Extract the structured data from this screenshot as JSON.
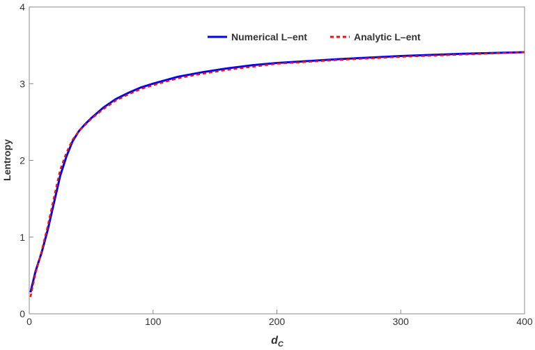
{
  "chart_data": {
    "type": "line",
    "x_label": {
      "main": "d",
      "sub": "C"
    },
    "y_label": "Lentropy",
    "xlim": [
      0,
      400
    ],
    "ylim": [
      0,
      4
    ],
    "xticks": [
      0,
      100,
      200,
      300,
      400
    ],
    "yticks": [
      0,
      1,
      2,
      3,
      4
    ],
    "legend": "top",
    "x": [
      1,
      5,
      10,
      15,
      20,
      25,
      30,
      35,
      40,
      45,
      50,
      60,
      70,
      80,
      90,
      100,
      120,
      140,
      160,
      180,
      200,
      250,
      300,
      350,
      400
    ],
    "series": [
      {
        "name": "Numerical L–ent",
        "color": "#0000ee",
        "dashed": false,
        "values": [
          0.28,
          0.55,
          0.8,
          1.1,
          1.45,
          1.8,
          2.05,
          2.25,
          2.38,
          2.47,
          2.55,
          2.69,
          2.8,
          2.88,
          2.95,
          3.0,
          3.09,
          3.15,
          3.2,
          3.24,
          3.27,
          3.32,
          3.36,
          3.39,
          3.41
        ]
      },
      {
        "name": "Analytic L–ent",
        "color": "#ee1111",
        "dashed": true,
        "values": [
          0.22,
          0.52,
          0.82,
          1.15,
          1.52,
          1.88,
          2.1,
          2.27,
          2.38,
          2.46,
          2.54,
          2.67,
          2.78,
          2.86,
          2.93,
          2.98,
          3.07,
          3.13,
          3.18,
          3.22,
          3.26,
          3.31,
          3.35,
          3.38,
          3.41
        ]
      }
    ]
  }
}
